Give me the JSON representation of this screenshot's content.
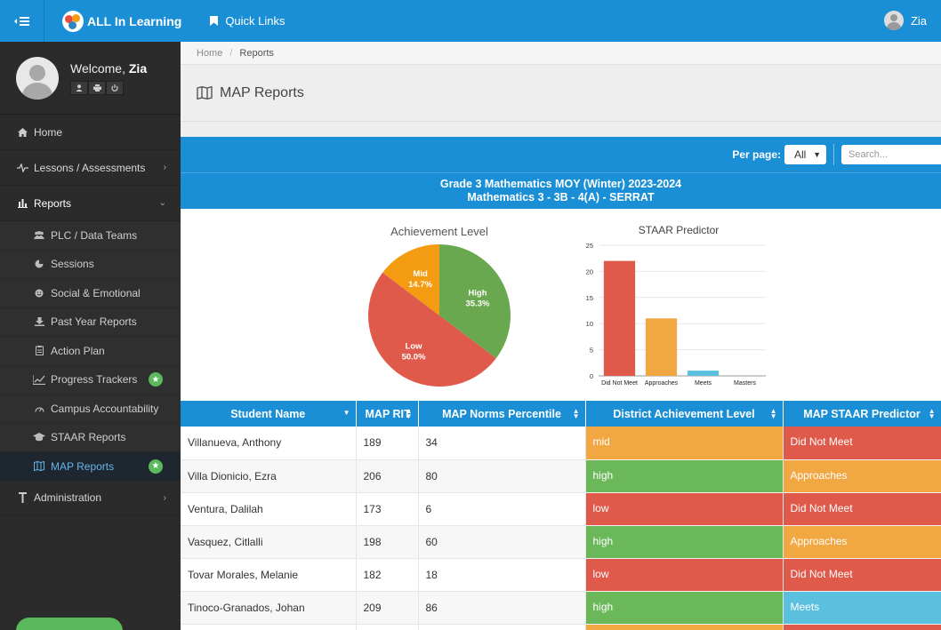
{
  "topbar": {
    "app_name": "ALL In Learning",
    "quick_links": "Quick Links",
    "user": "Zia"
  },
  "sidebar": {
    "welcome": "Welcome,",
    "user_name": "Zia",
    "items": [
      {
        "label": "Home",
        "icon": "home-icon"
      },
      {
        "label": "Lessons / Assessments",
        "icon": "pulse-icon"
      },
      {
        "label": "Reports",
        "icon": "bar-chart-icon"
      },
      {
        "label": "Administration",
        "icon": "text-icon"
      }
    ],
    "reports_sub": [
      {
        "label": "PLC / Data Teams",
        "icon": "users-icon"
      },
      {
        "label": "Sessions",
        "icon": "pie-icon"
      },
      {
        "label": "Social & Emotional",
        "icon": "smile-icon"
      },
      {
        "label": "Past Year Reports",
        "icon": "download-icon"
      },
      {
        "label": "Action Plan",
        "icon": "clipboard-icon"
      },
      {
        "label": "Progress Trackers",
        "icon": "line-chart-icon"
      },
      {
        "label": "Campus Accountability",
        "icon": "gauge-icon"
      },
      {
        "label": "STAAR Reports",
        "icon": "graduation-cap-icon"
      },
      {
        "label": "MAP Reports",
        "icon": "map-icon"
      }
    ]
  },
  "breadcrumb": {
    "home": "Home",
    "current": "Reports"
  },
  "page": {
    "title": "MAP Reports"
  },
  "toolbar": {
    "per_page_label": "Per page:",
    "per_page_value": "All",
    "search_placeholder": "Search..."
  },
  "report": {
    "title_line1": "Grade 3 Mathematics MOY (Winter) 2023-2024",
    "title_line2": "Mathematics 3 - 3B - 4(A) - SERRAT"
  },
  "colors": {
    "primary": "#1a8fd6",
    "high": "#6bb85a",
    "mid": "#f1a843",
    "low": "#e05a4b",
    "meets": "#5bc0de"
  },
  "chart_data": [
    {
      "type": "pie",
      "title": "Achievement Level",
      "slices": [
        {
          "label": "High",
          "value": 35.3,
          "color": "#6aa84f"
        },
        {
          "label": "Low",
          "value": 50.0,
          "color": "#e05a4b"
        },
        {
          "label": "Mid",
          "value": 14.7,
          "color": "#f39c12"
        }
      ]
    },
    {
      "type": "bar",
      "title": "STAAR Predictor",
      "categories": [
        "Did Not Meet",
        "Approaches",
        "Meets",
        "Masters"
      ],
      "values": [
        22,
        11,
        1,
        0
      ],
      "colors": [
        "#e05a4b",
        "#f1a843",
        "#5bc0de",
        "#888888"
      ],
      "ylim": [
        0,
        25
      ],
      "yticks": [
        0,
        5,
        10,
        15,
        20,
        25
      ]
    }
  ],
  "table": {
    "columns": [
      "Student Name",
      "MAP RIT",
      "MAP Norms Percentile",
      "District Achievement Level",
      "MAP STAAR Predictor"
    ],
    "rows": [
      {
        "name": "Villanueva, Anthony",
        "rit": "189",
        "pct": "34",
        "level": "mid",
        "pred": "Did Not Meet"
      },
      {
        "name": "Villa Dionicio, Ezra",
        "rit": "206",
        "pct": "80",
        "level": "high",
        "pred": "Approaches"
      },
      {
        "name": "Ventura, Dalilah",
        "rit": "173",
        "pct": "6",
        "level": "low",
        "pred": "Did Not Meet"
      },
      {
        "name": "Vasquez, Citlalli",
        "rit": "198",
        "pct": "60",
        "level": "high",
        "pred": "Approaches"
      },
      {
        "name": "Tovar Morales, Melanie",
        "rit": "182",
        "pct": "18",
        "level": "low",
        "pred": "Did Not Meet"
      },
      {
        "name": "Tinoco-Granados,  Johan",
        "rit": "209",
        "pct": "86",
        "level": "high",
        "pred": "Meets"
      },
      {
        "name": "",
        "rit": "",
        "pct": "",
        "level": "mid",
        "pred": "Did Not Meet"
      }
    ]
  }
}
